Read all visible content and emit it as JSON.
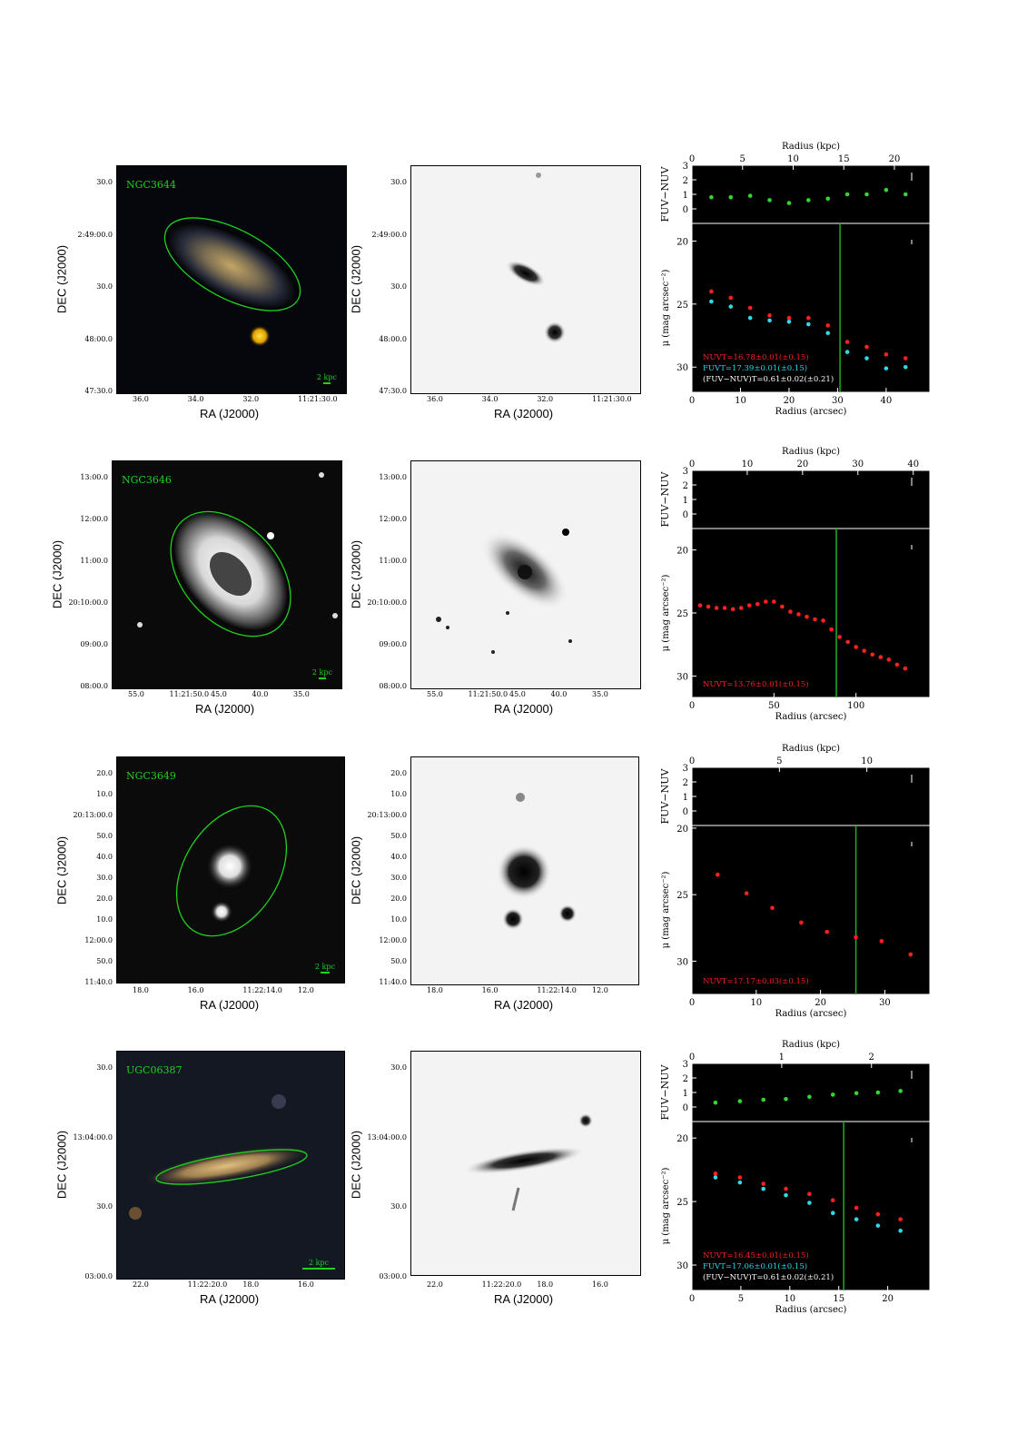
{
  "common": {
    "ra_title": "RA (J2000)",
    "dec_title": "DEC (J2000)",
    "radius_kpc_title": "Radius (kpc)",
    "radius_arcsec_title": "Radius (arcsec)",
    "color_title": "FUV−NUV",
    "mu_title": "μ (mag arcsec⁻²)"
  },
  "galaxies": [
    {
      "name": "NGC3644",
      "scale_label": "2 kpc",
      "ra_ticks": [
        "36.0",
        "34.0",
        "32.0",
        "11:21:30.0"
      ],
      "dec_ticks": [
        "30.0",
        "2:49:00.0",
        "30.0",
        "48:00.0",
        "47:30.0"
      ],
      "kpc_ticks": [
        "0",
        "5",
        "10",
        "15",
        "20"
      ],
      "kpc_max": 23.5,
      "arcsec_ticks": [
        "0",
        "10",
        "20",
        "30",
        "40"
      ],
      "arcsec_max": 49,
      "mu_ticks": [
        "20",
        "25",
        "30"
      ],
      "mu_range": [
        18.6,
        32.0
      ],
      "color_ticks": [
        "3",
        "2",
        "1",
        "0"
      ],
      "color_range": [
        -1.0,
        3.0
      ],
      "vline_arcsec": 30.5,
      "legend": [
        {
          "text": "NUVT=16.78±0.01(±0.15)",
          "color": "#ff2020"
        },
        {
          "text": "FUVT=17.39±0.01(±0.15)",
          "color": "#30d8e8"
        },
        {
          "text": "(FUV−NUV)T=0.61±0.02(±0.21)",
          "color": "#ffffff"
        }
      ],
      "chart_data": {
        "type": "scatter",
        "series": [
          {
            "name": "NUV",
            "color": "#ff2020",
            "x": [
              4,
              8,
              12,
              16,
              20,
              24,
              28,
              32,
              36,
              40,
              44
            ],
            "y": [
              24.0,
              24.5,
              25.3,
              25.9,
              26.1,
              26.1,
              26.7,
              28.0,
              28.4,
              29.0,
              29.3
            ]
          },
          {
            "name": "FUV",
            "color": "#30d8e8",
            "x": [
              4,
              8,
              12,
              16,
              20,
              24,
              28,
              32,
              36,
              40,
              44
            ],
            "y": [
              24.8,
              25.2,
              26.1,
              26.3,
              26.4,
              26.6,
              27.3,
              28.8,
              29.3,
              30.1,
              30.0
            ]
          },
          {
            "name": "FUV−NUV",
            "color": "#30d830",
            "x": [
              4,
              8,
              12,
              16,
              20,
              24,
              28,
              32,
              36,
              40,
              44
            ],
            "y": [
              0.8,
              0.8,
              0.9,
              0.6,
              0.4,
              0.6,
              0.7,
              1.0,
              1.0,
              1.3,
              1.0
            ]
          }
        ]
      }
    },
    {
      "name": "NGC3646",
      "scale_label": "2 kpc",
      "ra_ticks": [
        "55.0",
        "11:21:50.0",
        "45.0",
        "40.0",
        "35.0"
      ],
      "dec_ticks": [
        "13:00.0",
        "12:00.0",
        "11:00.0",
        "20:10:00.0",
        "09:00.0",
        "08:00.0"
      ],
      "kpc_ticks": [
        "0",
        "10",
        "20",
        "30",
        "40"
      ],
      "kpc_max": 43,
      "arcsec_ticks": [
        "0",
        "50",
        "100"
      ],
      "arcsec_max": 145,
      "mu_ticks": [
        "20",
        "25",
        "30"
      ],
      "mu_range": [
        18.3,
        31.7
      ],
      "color_ticks": [
        "3",
        "2",
        "1",
        "0"
      ],
      "color_range": [
        -1.0,
        3.0
      ],
      "vline_arcsec": 88,
      "legend": [
        {
          "text": "NUVT=13.76±0.01(±0.15)",
          "color": "#ff2020"
        }
      ],
      "chart_data": {
        "type": "scatter",
        "series": [
          {
            "name": "NUV",
            "color": "#ff2020",
            "x": [
              5,
              10,
              15,
              20,
              25,
              30,
              35,
              40,
              45,
              50,
              55,
              60,
              65,
              70,
              75,
              80,
              85,
              90,
              95,
              100,
              105,
              110,
              115,
              120,
              125,
              130
            ],
            "y": [
              24.4,
              24.5,
              24.6,
              24.6,
              24.7,
              24.6,
              24.4,
              24.3,
              24.1,
              24.1,
              24.5,
              24.9,
              25.1,
              25.3,
              25.5,
              25.6,
              26.3,
              26.9,
              27.3,
              27.7,
              28.0,
              28.3,
              28.5,
              28.7,
              29.1,
              29.4
            ]
          }
        ]
      }
    },
    {
      "name": "NGC3649",
      "scale_label": "2 kpc",
      "ra_ticks": [
        "18.0",
        "16.0",
        "11:22:14.0",
        "12.0"
      ],
      "dec_ticks": [
        "20.0",
        "10.0",
        "20:13:00.0",
        "50.0",
        "40.0",
        "30.0",
        "20.0",
        "10.0",
        "12:00.0",
        "50.0",
        "11:40.0"
      ],
      "kpc_ticks": [
        "0",
        "5",
        "10"
      ],
      "kpc_max": 13.6,
      "arcsec_ticks": [
        "0",
        "10",
        "20",
        "30"
      ],
      "arcsec_max": 37,
      "mu_ticks": [
        "20",
        "25",
        "30"
      ],
      "mu_range": [
        19.8,
        32.5
      ],
      "color_ticks": [
        "3",
        "2",
        "1",
        "0"
      ],
      "color_range": [
        -1.0,
        3.0
      ],
      "vline_arcsec": 25.5,
      "legend": [
        {
          "text": "NUVT=17.17±0.03(±0.15)",
          "color": "#ff2020"
        }
      ],
      "chart_data": {
        "type": "scatter",
        "series": [
          {
            "name": "NUV",
            "color": "#ff2020",
            "x": [
              4,
              8.5,
              12.5,
              17,
              21,
              25.5,
              29.5,
              34
            ],
            "y": [
              23.5,
              24.9,
              26.0,
              27.1,
              27.8,
              28.2,
              28.5,
              29.5
            ]
          }
        ]
      }
    },
    {
      "name": "UGC06387",
      "scale_label": "2 kpc",
      "ra_ticks": [
        "22.0",
        "11:22:20.0",
        "18.0",
        "16.0"
      ],
      "dec_ticks": [
        "30.0",
        "13:04:00.0",
        "30.0",
        "03:00.0"
      ],
      "kpc_ticks": [
        "0",
        "1",
        "2"
      ],
      "kpc_max": 2.65,
      "arcsec_ticks": [
        "0",
        "5",
        "10",
        "15",
        "20"
      ],
      "arcsec_max": 24.3,
      "mu_ticks": [
        "20",
        "25",
        "30"
      ],
      "mu_range": [
        18.7,
        32.0
      ],
      "color_ticks": [
        "3",
        "2",
        "1",
        "0"
      ],
      "color_range": [
        -1.0,
        3.0
      ],
      "vline_arcsec": 15.5,
      "legend": [
        {
          "text": "NUVT=16.45±0.01(±0.15)",
          "color": "#ff2020"
        },
        {
          "text": "FUVT=17.06±0.01(±0.15)",
          "color": "#30d8e8"
        },
        {
          "text": "(FUV−NUV)T=0.61±0.02(±0.21)",
          "color": "#ffffff"
        }
      ],
      "chart_data": {
        "type": "scatter",
        "series": [
          {
            "name": "NUV",
            "color": "#ff2020",
            "x": [
              2.4,
              4.9,
              7.3,
              9.6,
              12,
              14.4,
              16.8,
              19,
              21.3
            ],
            "y": [
              22.8,
              23.1,
              23.6,
              24.0,
              24.4,
              24.9,
              25.5,
              26.0,
              26.4
            ]
          },
          {
            "name": "FUV",
            "color": "#30d8e8",
            "x": [
              2.4,
              4.9,
              7.3,
              9.6,
              12,
              14.4,
              16.8,
              19,
              21.3
            ],
            "y": [
              23.1,
              23.5,
              24.0,
              24.5,
              25.1,
              25.9,
              26.4,
              26.9,
              27.3
            ]
          },
          {
            "name": "FUV−NUV",
            "color": "#30d830",
            "x": [
              2.4,
              4.9,
              7.3,
              9.6,
              12,
              14.4,
              16.8,
              19,
              21.3
            ],
            "y": [
              0.3,
              0.4,
              0.5,
              0.55,
              0.7,
              0.85,
              0.95,
              1.0,
              1.1
            ]
          }
        ]
      }
    }
  ]
}
